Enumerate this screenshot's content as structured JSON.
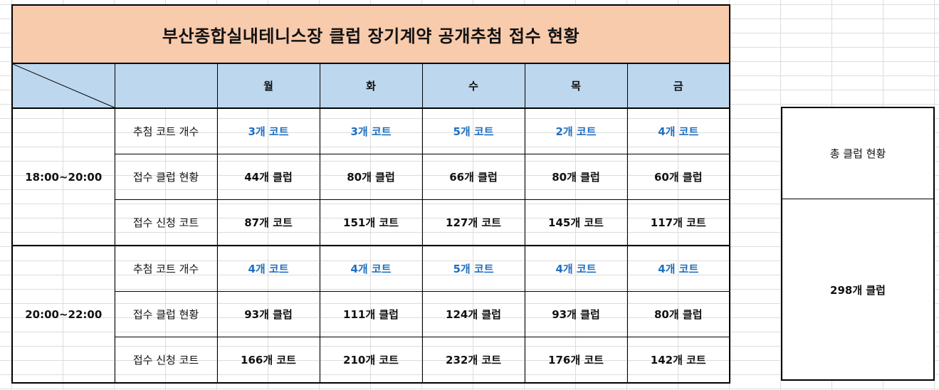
{
  "title": "부산종합실내테니스장  클럽 장기계약 공개추첨 접수 현황",
  "days": [
    "월",
    "화",
    "수",
    "목",
    "금"
  ],
  "groups": [
    {
      "time": "18:00~20:00",
      "rows": [
        {
          "label": "추첨 코트 개수",
          "values": [
            "3개 코트",
            "3개 코트",
            "5개 코트",
            "2개 코트",
            "4개 코트"
          ]
        },
        {
          "label": "접수 클럽 현황",
          "values": [
            "44개 클럽",
            "80개 클럽",
            "66개 클럽",
            "80개 클럽",
            "60개 클럽"
          ]
        },
        {
          "label": "접수 신청 코트",
          "values": [
            "87개 코트",
            "151개 코트",
            "127개 코트",
            "145개 코트",
            "117개 코트"
          ]
        }
      ]
    },
    {
      "time": "20:00~22:00",
      "rows": [
        {
          "label": "추첨 코트 개수",
          "values": [
            "4개 코트",
            "4개 코트",
            "5개 코트",
            "4개 코트",
            "4개 코트"
          ]
        },
        {
          "label": "접수 클럽 현황",
          "values": [
            "93개 클럽",
            "111개 클럽",
            "124개 클럽",
            "93개 클럽",
            "80개 클럽"
          ]
        },
        {
          "label": "접수 신청 코트",
          "values": [
            "166개 코트",
            "210개 코트",
            "232개 코트",
            "176개 코트",
            "142개 코트"
          ]
        }
      ]
    }
  ],
  "total": {
    "label": "총 클럽 현황",
    "value": "298개 클럽"
  },
  "colors": {
    "title_bg": "#f8cbad",
    "header_bg": "#bdd7ee",
    "court_count_text": "#1f6fc0"
  }
}
